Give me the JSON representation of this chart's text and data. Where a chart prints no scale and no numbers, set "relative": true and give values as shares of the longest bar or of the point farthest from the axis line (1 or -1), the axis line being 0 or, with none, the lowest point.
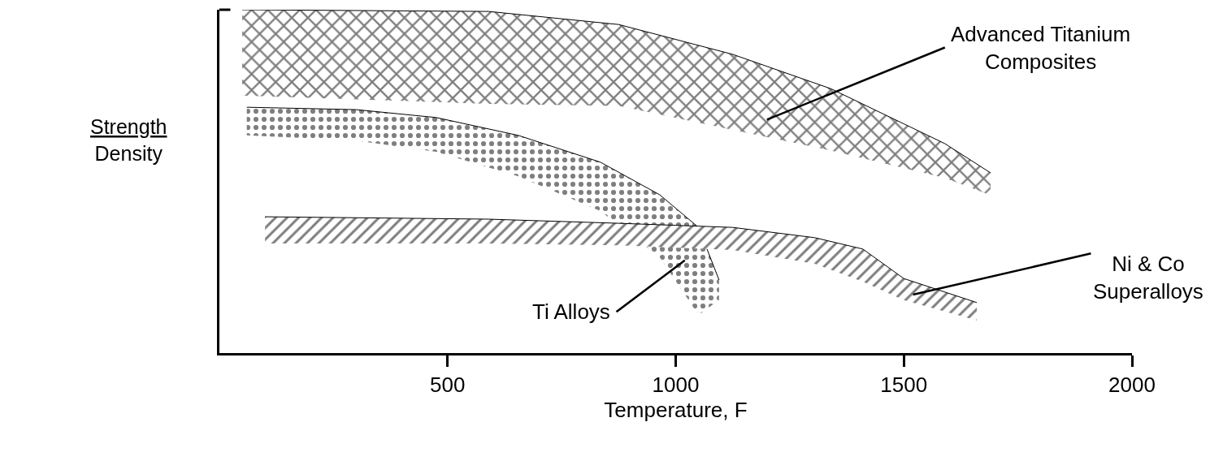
{
  "chart_data": {
    "type": "line",
    "relative": true,
    "xlabel": "Temperature, F",
    "ylabel": "Strength\nDensity",
    "xlim": [
      0,
      2000
    ],
    "xticks": [
      500,
      1000,
      1500,
      2000
    ],
    "tick_labels": "x",
    "series": [
      {
        "color": "#000000",
        "x": [
          50,
          590,
          875,
          1125,
          1340,
          1590,
          1690
        ],
        "values": [
          1.0,
          0.995,
          0.957,
          0.87,
          0.77,
          0.61,
          0.525
        ],
        "lower": [
          0.75,
          0.726,
          0.72,
          0.65,
          0.59,
          0.51,
          0.46
        ],
        "upper": [
          1.0,
          0.995,
          0.957,
          0.87,
          0.77,
          0.61,
          0.525
        ]
      },
      {
        "color": "#000000",
        "x": [
          60,
          300,
          475,
          655,
          835,
          965,
          1050,
          1095
        ],
        "values": [
          0.716,
          0.709,
          0.686,
          0.634,
          0.556,
          0.461,
          0.366,
          0.213
        ],
        "lower": [
          0.634,
          0.619,
          0.586,
          0.515,
          0.414,
          0.279,
          0.111,
          0.154
        ],
        "upper": [
          0.716,
          0.709,
          0.686,
          0.634,
          0.556,
          0.461,
          0.366,
          0.213
        ]
      },
      {
        "color": "#000000",
        "x": [
          100,
          590,
          875,
          1125,
          1305,
          1410,
          1500,
          1660
        ],
        "values": [
          0.397,
          0.39,
          0.378,
          0.366,
          0.336,
          0.303,
          0.217,
          0.147
        ],
        "lower": [
          0.319,
          0.319,
          0.314,
          0.3,
          0.26,
          0.208,
          0.154,
          0.095
        ],
        "upper": [
          0.397,
          0.39,
          0.378,
          0.366,
          0.336,
          0.303,
          0.217,
          0.147
        ]
      }
    ],
    "annotations": [
      "Advanced Titanium\nComposites",
      "Ti Alloys",
      "Ni & Co\nSuperalloys"
    ]
  }
}
